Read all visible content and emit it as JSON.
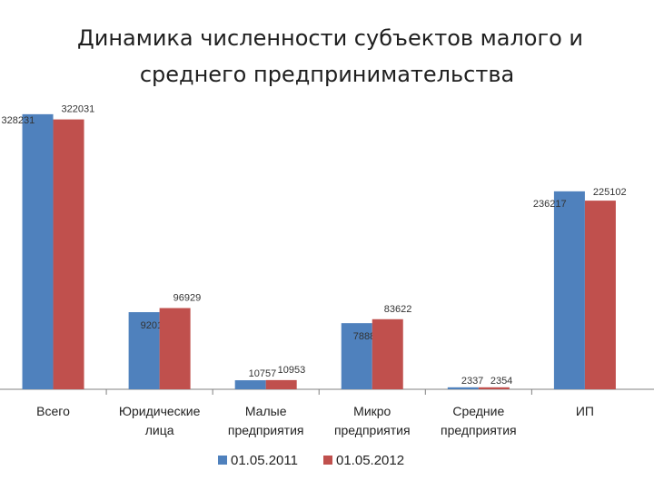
{
  "title": {
    "line1": "Динамика численности субъектов малого и",
    "line2": "среднего предпринимательства"
  },
  "colors": {
    "series1": "#4f81bd",
    "series2": "#c0504d",
    "axis": "#808080"
  },
  "chart_data": {
    "type": "bar",
    "categories": [
      [
        "Всего"
      ],
      [
        "Юридические",
        "лица"
      ],
      [
        "Малые",
        "предприятия"
      ],
      [
        "Микро",
        "предприятия"
      ],
      [
        "Средние",
        "предприятия"
      ],
      [
        "ИП"
      ]
    ],
    "series": [
      {
        "name": "01.05.2011",
        "values": [
          328231,
          92014,
          10757,
          78880,
          2337,
          236217
        ]
      },
      {
        "name": "01.05.2012",
        "values": [
          322031,
          96929,
          10953,
          83622,
          2354,
          225102
        ]
      }
    ],
    "ylim": [
      0,
      340000
    ],
    "grid": false,
    "legend": "bottom"
  }
}
